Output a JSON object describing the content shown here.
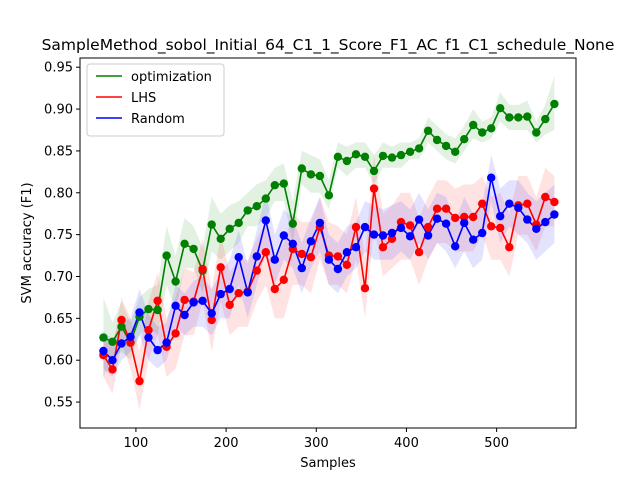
{
  "chart_data": {
    "type": "line",
    "title": "SampleMethod_sobol_Initial_64_C1_1_Score_F1_AC_f1_C1_schedule_None",
    "xlabel": "Samples",
    "ylabel": "SVM accuracy (F1)",
    "xlim": [
      38,
      588
    ],
    "ylim": [
      0.519,
      0.961
    ],
    "xticks": [
      100,
      200,
      300,
      400,
      500
    ],
    "xtick_labels": [
      "100",
      "200",
      "300",
      "400",
      "500"
    ],
    "yticks": [
      0.55,
      0.6,
      0.65,
      0.7,
      0.75,
      0.8,
      0.85,
      0.9,
      0.95
    ],
    "ytick_labels": [
      "0.55",
      "0.60",
      "0.65",
      "0.70",
      "0.75",
      "0.80",
      "0.85",
      "0.90",
      "0.95"
    ],
    "grid": false,
    "legend_position": "top-left",
    "x": [
      64,
      74,
      84,
      94,
      104,
      114,
      124,
      134,
      144,
      154,
      164,
      174,
      184,
      194,
      204,
      214,
      224,
      234,
      244,
      254,
      264,
      274,
      284,
      294,
      304,
      314,
      324,
      334,
      344,
      354,
      364,
      374,
      384,
      394,
      404,
      414,
      424,
      434,
      444,
      454,
      464,
      474,
      484,
      494,
      504,
      514,
      524,
      534,
      544,
      554,
      564
    ],
    "series": [
      {
        "name": "optimization",
        "color": "#008000",
        "values": [
          0.627,
          0.622,
          0.64,
          0.621,
          0.652,
          0.661,
          0.66,
          0.725,
          0.694,
          0.739,
          0.733,
          0.707,
          0.762,
          0.745,
          0.757,
          0.764,
          0.779,
          0.784,
          0.793,
          0.809,
          0.811,
          0.763,
          0.829,
          0.822,
          0.82,
          0.797,
          0.843,
          0.838,
          0.846,
          0.843,
          0.826,
          0.844,
          0.842,
          0.845,
          0.849,
          0.853,
          0.874,
          0.863,
          0.856,
          0.849,
          0.864,
          0.881,
          0.872,
          0.877,
          0.901,
          0.89,
          0.89,
          0.891,
          0.872,
          0.888,
          0.906
        ],
        "band_lower": [
          0.58,
          0.6,
          0.61,
          0.6,
          0.63,
          0.64,
          0.63,
          0.69,
          0.66,
          0.71,
          0.71,
          0.68,
          0.73,
          0.72,
          0.73,
          0.74,
          0.76,
          0.76,
          0.77,
          0.79,
          0.79,
          0.74,
          0.81,
          0.8,
          0.8,
          0.78,
          0.83,
          0.82,
          0.83,
          0.83,
          0.81,
          0.83,
          0.83,
          0.83,
          0.84,
          0.84,
          0.86,
          0.85,
          0.84,
          0.835,
          0.85,
          0.865,
          0.86,
          0.865,
          0.885,
          0.875,
          0.875,
          0.875,
          0.86,
          0.87,
          0.875
        ],
        "band_upper": [
          0.675,
          0.645,
          0.67,
          0.645,
          0.675,
          0.685,
          0.69,
          0.76,
          0.725,
          0.77,
          0.76,
          0.735,
          0.795,
          0.775,
          0.785,
          0.79,
          0.8,
          0.81,
          0.815,
          0.83,
          0.835,
          0.79,
          0.85,
          0.845,
          0.84,
          0.815,
          0.86,
          0.855,
          0.86,
          0.86,
          0.845,
          0.86,
          0.855,
          0.86,
          0.86,
          0.865,
          0.89,
          0.88,
          0.87,
          0.865,
          0.88,
          0.9,
          0.885,
          0.89,
          0.92,
          0.905,
          0.905,
          0.91,
          0.885,
          0.905,
          0.94
        ]
      },
      {
        "name": "LHS",
        "color": "#ff0000",
        "values": [
          0.606,
          0.589,
          0.648,
          0.621,
          0.575,
          0.636,
          0.671,
          0.616,
          0.632,
          0.672,
          0.67,
          0.709,
          0.648,
          0.711,
          0.666,
          0.68,
          0.682,
          0.707,
          0.729,
          0.685,
          0.696,
          0.733,
          0.727,
          0.723,
          0.759,
          0.725,
          0.724,
          0.714,
          0.759,
          0.686,
          0.805,
          0.735,
          0.745,
          0.765,
          0.761,
          0.729,
          0.759,
          0.781,
          0.781,
          0.77,
          0.771,
          0.771,
          0.787,
          0.76,
          0.758,
          0.735,
          0.785,
          0.787,
          0.762,
          0.795,
          0.789
        ],
        "band_lower": [
          0.58,
          0.56,
          0.62,
          0.59,
          0.54,
          0.6,
          0.63,
          0.58,
          0.59,
          0.63,
          0.63,
          0.67,
          0.61,
          0.67,
          0.63,
          0.64,
          0.64,
          0.67,
          0.69,
          0.65,
          0.65,
          0.69,
          0.69,
          0.68,
          0.72,
          0.69,
          0.69,
          0.68,
          0.72,
          0.65,
          0.76,
          0.7,
          0.71,
          0.72,
          0.72,
          0.69,
          0.72,
          0.74,
          0.74,
          0.73,
          0.73,
          0.73,
          0.75,
          0.72,
          0.72,
          0.7,
          0.75,
          0.75,
          0.73,
          0.76,
          0.76
        ],
        "band_upper": [
          0.63,
          0.615,
          0.675,
          0.65,
          0.61,
          0.67,
          0.705,
          0.65,
          0.675,
          0.71,
          0.705,
          0.745,
          0.685,
          0.75,
          0.705,
          0.72,
          0.72,
          0.745,
          0.765,
          0.72,
          0.74,
          0.775,
          0.765,
          0.765,
          0.795,
          0.765,
          0.76,
          0.75,
          0.795,
          0.725,
          0.845,
          0.775,
          0.785,
          0.8,
          0.8,
          0.77,
          0.795,
          0.815,
          0.815,
          0.805,
          0.81,
          0.81,
          0.82,
          0.795,
          0.8,
          0.775,
          0.82,
          0.82,
          0.795,
          0.83,
          0.82
        ]
      },
      {
        "name": "Random",
        "color": "#0000ff",
        "values": [
          0.611,
          0.6,
          0.62,
          0.628,
          0.657,
          0.627,
          0.612,
          0.621,
          0.665,
          0.654,
          0.669,
          0.671,
          0.656,
          0.679,
          0.685,
          0.723,
          0.681,
          0.724,
          0.767,
          0.72,
          0.749,
          0.739,
          0.71,
          0.742,
          0.764,
          0.72,
          0.709,
          0.729,
          0.735,
          0.759,
          0.75,
          0.749,
          0.752,
          0.758,
          0.748,
          0.768,
          0.749,
          0.769,
          0.763,
          0.736,
          0.764,
          0.744,
          0.752,
          0.818,
          0.772,
          0.787,
          0.782,
          0.768,
          0.757,
          0.765,
          0.774
        ],
        "band_lower": [
          0.59,
          0.58,
          0.6,
          0.61,
          0.63,
          0.6,
          0.59,
          0.6,
          0.64,
          0.63,
          0.64,
          0.64,
          0.63,
          0.65,
          0.65,
          0.69,
          0.65,
          0.69,
          0.73,
          0.69,
          0.72,
          0.71,
          0.68,
          0.71,
          0.73,
          0.69,
          0.68,
          0.7,
          0.71,
          0.73,
          0.72,
          0.72,
          0.72,
          0.73,
          0.72,
          0.74,
          0.72,
          0.74,
          0.73,
          0.71,
          0.73,
          0.71,
          0.72,
          0.79,
          0.74,
          0.76,
          0.75,
          0.74,
          0.72,
          0.73,
          0.74
        ],
        "band_upper": [
          0.635,
          0.625,
          0.645,
          0.65,
          0.685,
          0.655,
          0.64,
          0.645,
          0.69,
          0.68,
          0.695,
          0.7,
          0.685,
          0.705,
          0.72,
          0.755,
          0.715,
          0.755,
          0.8,
          0.75,
          0.78,
          0.77,
          0.74,
          0.77,
          0.795,
          0.75,
          0.74,
          0.76,
          0.765,
          0.79,
          0.785,
          0.78,
          0.785,
          0.79,
          0.78,
          0.8,
          0.78,
          0.8,
          0.795,
          0.765,
          0.795,
          0.775,
          0.785,
          0.845,
          0.805,
          0.815,
          0.815,
          0.8,
          0.79,
          0.8,
          0.81
        ]
      }
    ]
  }
}
